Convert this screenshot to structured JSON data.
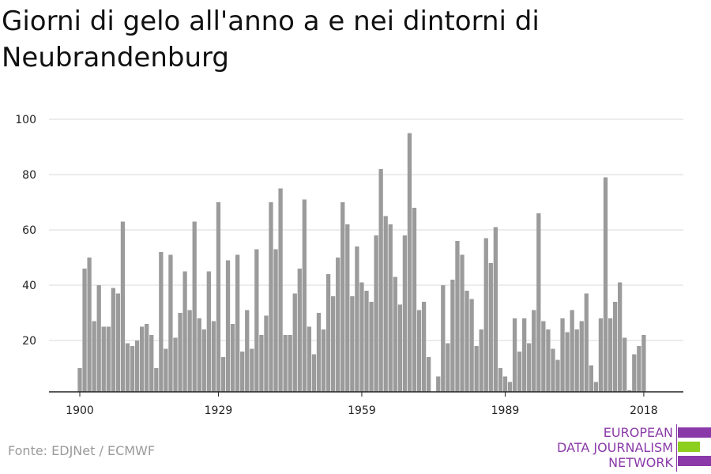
{
  "title": "Giorni di gelo all'anno a e nei dintorni di Neubrandenburg",
  "source": "Fonte: EDJNet / ECMWF",
  "logo": {
    "line1": "EUROPEAN",
    "line2": "DATA JOURNALISM",
    "line3": "NETWORK",
    "accent_color": "#8a3aa8",
    "green_color": "#8ccf1f"
  },
  "colors": {
    "bar": "#9b9b9b",
    "grid": "#d9d9d9",
    "axis": "#222222",
    "text": "#222222"
  },
  "chart_data": {
    "type": "bar",
    "title": "Giorni di gelo all'anno a e nei dintorni di Neubrandenburg",
    "xlabel": "",
    "ylabel": "",
    "xlim": [
      1900,
      2020
    ],
    "ylim": [
      0,
      100
    ],
    "yticks": [
      20,
      40,
      60,
      80,
      100
    ],
    "xticks": [
      1900,
      1929,
      1959,
      1989,
      2018
    ],
    "grid": true,
    "legend": "none",
    "x": [
      1900,
      1901,
      1902,
      1903,
      1904,
      1905,
      1906,
      1907,
      1908,
      1909,
      1910,
      1911,
      1912,
      1913,
      1914,
      1915,
      1916,
      1917,
      1918,
      1919,
      1920,
      1921,
      1922,
      1923,
      1924,
      1925,
      1926,
      1927,
      1928,
      1929,
      1930,
      1931,
      1932,
      1933,
      1934,
      1935,
      1936,
      1937,
      1938,
      1939,
      1940,
      1941,
      1942,
      1943,
      1944,
      1945,
      1946,
      1947,
      1948,
      1949,
      1950,
      1951,
      1952,
      1953,
      1954,
      1955,
      1956,
      1957,
      1958,
      1959,
      1960,
      1961,
      1962,
      1963,
      1964,
      1965,
      1966,
      1967,
      1968,
      1969,
      1970,
      1971,
      1972,
      1973,
      1974,
      1975,
      1976,
      1977,
      1978,
      1979,
      1980,
      1981,
      1982,
      1983,
      1984,
      1985,
      1986,
      1987,
      1988,
      1989,
      1990,
      1991,
      1992,
      1993,
      1994,
      1995,
      1996,
      1997,
      1998,
      1999,
      2000,
      2001,
      2002,
      2003,
      2004,
      2005,
      2006,
      2007,
      2008,
      2009,
      2010,
      2011,
      2012,
      2013,
      2014,
      2015,
      2016,
      2017,
      2018
    ],
    "values": [
      10,
      46,
      50,
      27,
      40,
      25,
      25,
      39,
      37,
      63,
      19,
      18,
      20,
      25,
      26,
      22,
      10,
      52,
      17,
      51,
      21,
      30,
      45,
      31,
      63,
      28,
      24,
      45,
      27,
      70,
      14,
      49,
      26,
      51,
      16,
      31,
      17,
      53,
      22,
      29,
      70,
      53,
      75,
      22,
      22,
      37,
      46,
      71,
      25,
      15,
      30,
      24,
      44,
      36,
      50,
      70,
      62,
      36,
      54,
      41,
      38,
      34,
      58,
      82,
      65,
      62,
      43,
      33,
      58,
      95,
      68,
      31,
      34,
      14,
      1,
      7,
      40,
      19,
      42,
      56,
      51,
      38,
      35,
      18,
      24,
      57,
      48,
      61,
      10,
      7,
      5,
      28,
      16,
      28,
      19,
      31,
      66,
      27,
      24,
      17,
      13,
      28,
      23,
      31,
      24,
      27,
      37,
      11,
      5,
      28,
      79,
      28,
      34,
      41,
      21,
      2,
      15,
      18,
      22
    ]
  }
}
